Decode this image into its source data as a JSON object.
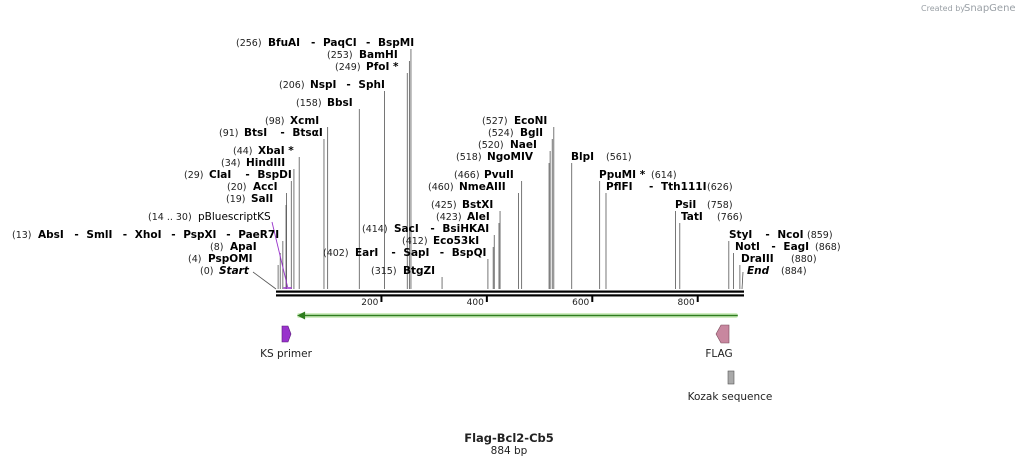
{
  "credit": {
    "prefix": "Created by",
    "brand": "SnapGene"
  },
  "sequence": {
    "name": "Flag-Bcl2-Cb5",
    "length_label": "884 bp",
    "length": 884
  },
  "ruler_ticks": [
    {
      "pos": 200,
      "label": "200"
    },
    {
      "pos": 400,
      "label": "400"
    },
    {
      "pos": 600,
      "label": "600"
    },
    {
      "pos": 800,
      "label": "800"
    }
  ],
  "site_rows": [
    {
      "num": "(256)",
      "names": [
        "BfuAI",
        "PaqCI",
        "BspMI"
      ],
      "positions": [
        256
      ]
    },
    {
      "num": "(253)",
      "names": [
        "BamHI"
      ],
      "positions": [
        253
      ]
    },
    {
      "num": "(249)",
      "names": [
        "PfoI *"
      ],
      "positions": [
        249
      ]
    },
    {
      "num": "(206)",
      "names": [
        "NspI",
        "SphI"
      ],
      "positions": [
        206
      ]
    },
    {
      "num": "(158)",
      "names": [
        "BbsI"
      ],
      "positions": [
        158
      ]
    },
    {
      "num": "(98)",
      "names": [
        "XcmI"
      ],
      "positions": [
        98
      ]
    },
    {
      "num": "(91)",
      "names": [
        "BtsI",
        "BtsαI"
      ],
      "positions": [
        91
      ]
    },
    {
      "num": "(44)",
      "names": [
        "XbaI *"
      ],
      "positions": [
        44
      ]
    },
    {
      "num": "(34)",
      "names": [
        "HindIII"
      ],
      "positions": [
        34
      ]
    },
    {
      "num": "(29)",
      "names": [
        "ClaI",
        "BspDI"
      ],
      "positions": [
        29
      ]
    },
    {
      "num": "(20)",
      "names": [
        "AccI"
      ],
      "positions": [
        20
      ]
    },
    {
      "num": "(19)",
      "names": [
        "SalI"
      ],
      "positions": [
        19
      ]
    },
    {
      "num": "(13)",
      "names": [
        "AbsI",
        "SmlI",
        "XhoI",
        "PspXI",
        "PaeR7I"
      ],
      "positions": [
        13
      ]
    },
    {
      "num": "(8)",
      "names": [
        "ApaI"
      ],
      "positions": [
        8
      ]
    },
    {
      "num": "(4)",
      "names": [
        "PspOMI"
      ],
      "positions": [
        4
      ]
    },
    {
      "num": "(0)",
      "names": [
        "Start"
      ],
      "italic": true,
      "positions": [
        0
      ]
    },
    {
      "num": "(414)",
      "names": [
        "SacI",
        "BsiHKAI"
      ],
      "positions": [
        414
      ]
    },
    {
      "num": "(402)",
      "names": [
        "EarI",
        "SapI",
        "BspQI"
      ],
      "positions": [
        402
      ]
    },
    {
      "num": "(423)",
      "names": [
        "AleI"
      ],
      "positions": [
        423
      ]
    },
    {
      "num": "(412)",
      "names": [
        "Eco53kI"
      ],
      "positions": [
        412
      ]
    },
    {
      "num": "(315)",
      "names": [
        "BtgZI"
      ],
      "positions": [
        315
      ]
    },
    {
      "num": "(425)",
      "names": [
        "BstXI"
      ],
      "positions": [
        425
      ]
    },
    {
      "num": "(460)",
      "names": [
        "NmeAIII"
      ],
      "positions": [
        460
      ]
    },
    {
      "num": "(466)",
      "names": [
        "PvuII"
      ],
      "positions": [
        466
      ]
    },
    {
      "num": "(518)",
      "names": [
        "NgoMIV"
      ],
      "positions": [
        518
      ]
    },
    {
      "num": "(520)",
      "names": [
        "NaeI"
      ],
      "positions": [
        520
      ]
    },
    {
      "num": "(524)",
      "names": [
        "BglI"
      ],
      "positions": [
        524
      ]
    },
    {
      "num": "(527)",
      "names": [
        "EcoNI"
      ],
      "positions": [
        527
      ]
    },
    {
      "num": "(561)",
      "names": [
        "BlpI"
      ],
      "positions": [
        561
      ]
    },
    {
      "num": "(614)",
      "names": [
        "PpuMI *"
      ],
      "positions": [
        614
      ]
    },
    {
      "num": "(626)",
      "names": [
        "PflFI",
        "Tth111I"
      ],
      "positions": [
        626
      ]
    },
    {
      "num": "(758)",
      "names": [
        "PsiI"
      ],
      "positions": [
        758
      ]
    },
    {
      "num": "(766)",
      "names": [
        "TatI"
      ],
      "positions": [
        766
      ]
    },
    {
      "num": "(859)",
      "names": [
        "StyI",
        "NcoI"
      ],
      "positions": [
        859
      ]
    },
    {
      "num": "(868)",
      "names": [
        "NotI",
        "EagI"
      ],
      "positions": [
        868
      ]
    },
    {
      "num": "(880)",
      "names": [
        "DraIII"
      ],
      "positions": [
        880
      ]
    },
    {
      "num": "(884)",
      "names": [
        "End"
      ],
      "italic": true,
      "positions": [
        884
      ]
    }
  ],
  "primer": {
    "range": "(14 .. 30)",
    "name": "pBluescriptKS",
    "color": "#9933cc"
  },
  "features": [
    {
      "name": "KS primer",
      "start": 14,
      "end": 30,
      "direction": "forward",
      "color": "#9933cc"
    },
    {
      "name": "FLAG",
      "start": 839,
      "end": 862,
      "direction": "reverse",
      "color": "#c8879f"
    },
    {
      "name": "Kozak sequence",
      "start": 859,
      "end": 869,
      "direction": "none",
      "color": "#a9a9a9"
    },
    {
      "name": "",
      "start": 40,
      "end": 876,
      "direction": "reverse",
      "color": "#7ccd4f"
    }
  ]
}
